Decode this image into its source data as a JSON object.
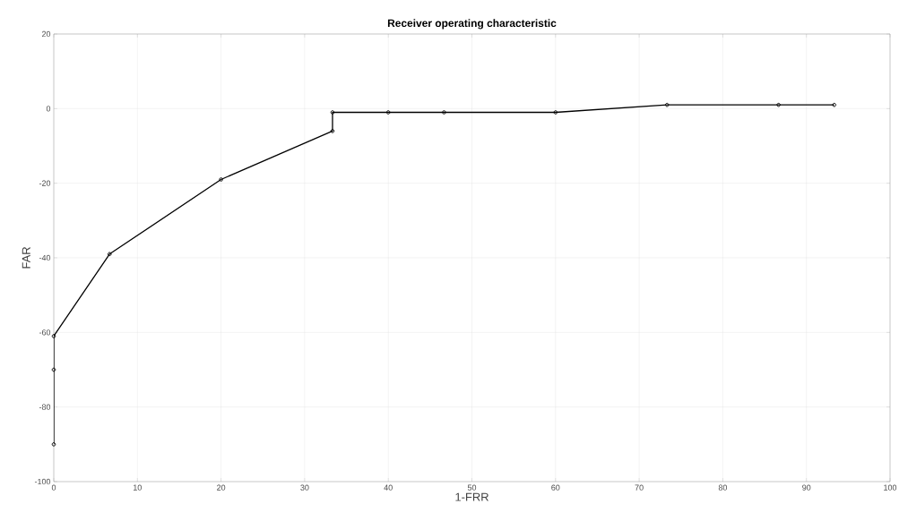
{
  "chart_data": {
    "type": "line",
    "title": "Receiver operating characteristic",
    "xlabel": "1-FRR",
    "ylabel": "FAR",
    "x": [
      0,
      0,
      0,
      6.67,
      20,
      33.33,
      33.33,
      40,
      46.67,
      60,
      73.33,
      86.67,
      93.33
    ],
    "series": [
      {
        "color": "#000000",
        "values": [
          -90,
          -70,
          -61,
          -39,
          -19,
          -6,
          -1,
          -1,
          -1,
          -1,
          1,
          1,
          1
        ]
      }
    ],
    "xlim": [
      0,
      100
    ],
    "ylim": [
      -100,
      20
    ],
    "xticks": [
      0,
      10,
      20,
      30,
      40,
      50,
      60,
      70,
      80,
      90,
      100
    ],
    "yticks": [
      -100,
      -80,
      -60,
      -40,
      -20,
      0,
      20
    ],
    "grid": true,
    "marker": "circle",
    "line_style": "solid"
  }
}
